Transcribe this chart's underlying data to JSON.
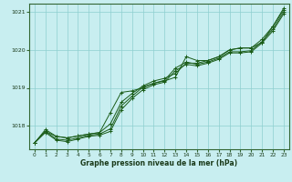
{
  "xlabel": "Graphe pression niveau de la mer (hPa)",
  "bg_color": "#c8eef0",
  "grid_color": "#8ecfcf",
  "line_color": "#1a5c18",
  "xlim": [
    -0.5,
    23.5
  ],
  "ylim": [
    1017.38,
    1021.22
  ],
  "yticks": [
    1018,
    1019,
    1020,
    1021
  ],
  "xticks": [
    0,
    1,
    2,
    3,
    4,
    5,
    6,
    7,
    8,
    9,
    10,
    11,
    12,
    13,
    14,
    15,
    16,
    17,
    18,
    19,
    20,
    21,
    22,
    23
  ],
  "series": [
    [
      1017.55,
      1017.85,
      1017.72,
      1017.68,
      1017.73,
      1017.78,
      1017.82,
      1018.35,
      1018.88,
      1018.92,
      1019.0,
      1019.12,
      1019.18,
      1019.28,
      1019.82,
      1019.72,
      1019.72,
      1019.82,
      1020.0,
      1020.05,
      1020.05,
      1020.2,
      1020.62,
      1021.05
    ],
    [
      1017.55,
      1017.9,
      1017.72,
      1017.68,
      1017.73,
      1017.78,
      1017.82,
      1018.05,
      1018.62,
      1018.85,
      1019.05,
      1019.18,
      1019.25,
      1019.38,
      1019.65,
      1019.65,
      1019.72,
      1019.82,
      1020.0,
      1020.05,
      1020.05,
      1020.28,
      1020.62,
      1021.1
    ],
    [
      1017.55,
      1017.85,
      1017.65,
      1017.62,
      1017.68,
      1017.75,
      1017.78,
      1017.92,
      1018.52,
      1018.78,
      1019.02,
      1019.12,
      1019.2,
      1019.52,
      1019.68,
      1019.62,
      1019.68,
      1019.78,
      1019.95,
      1019.95,
      1019.98,
      1020.22,
      1020.55,
      1021.0
    ],
    [
      1017.55,
      1017.82,
      1017.62,
      1017.58,
      1017.65,
      1017.72,
      1017.75,
      1017.85,
      1018.42,
      1018.72,
      1018.95,
      1019.08,
      1019.15,
      1019.45,
      1019.62,
      1019.58,
      1019.65,
      1019.75,
      1019.92,
      1019.92,
      1019.95,
      1020.18,
      1020.5,
      1020.95
    ]
  ]
}
